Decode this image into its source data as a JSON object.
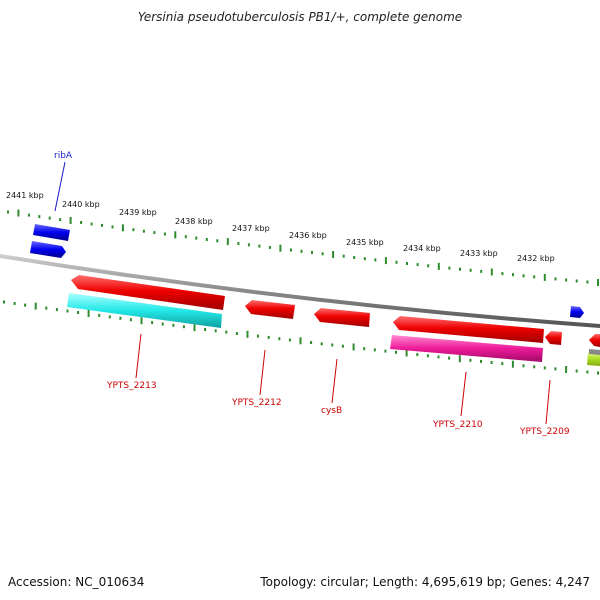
{
  "title": "Yersinia pseudotuberculosis PB1/+, complete genome",
  "footer": {
    "accession": "Accession: NC_010634",
    "summary": "Topology: circular; Length: 4,695,619 bp; Genes: 4,247"
  },
  "scale_labels": [
    "2441 kbp",
    "2440 kbp",
    "2439 kbp",
    "2438 kbp",
    "2437 kbp",
    "2436 kbp",
    "2435 kbp",
    "2434 kbp",
    "2433 kbp",
    "2432 kbp"
  ],
  "gene_labels": [
    {
      "text": "ribA",
      "color": "#1a1acc"
    },
    {
      "text": "YPTS_2213",
      "color": "#cc0000"
    },
    {
      "text": "YPTS_2212",
      "color": "#cc0000"
    },
    {
      "text": "cysB",
      "color": "#cc0000"
    },
    {
      "text": "YPTS_2210",
      "color": "#cc0000"
    },
    {
      "text": "YPTS_2209",
      "color": "#cc0000"
    }
  ],
  "colors": {
    "backbone": "#8a8a8a",
    "tick": "#2e8b2e",
    "forward_cds": "#0000ee",
    "reverse_cds": "#ee0000",
    "misc_cyan": "#22e8e8",
    "misc_pink": "#ee1a9a",
    "misc_lime": "#aadd22"
  }
}
